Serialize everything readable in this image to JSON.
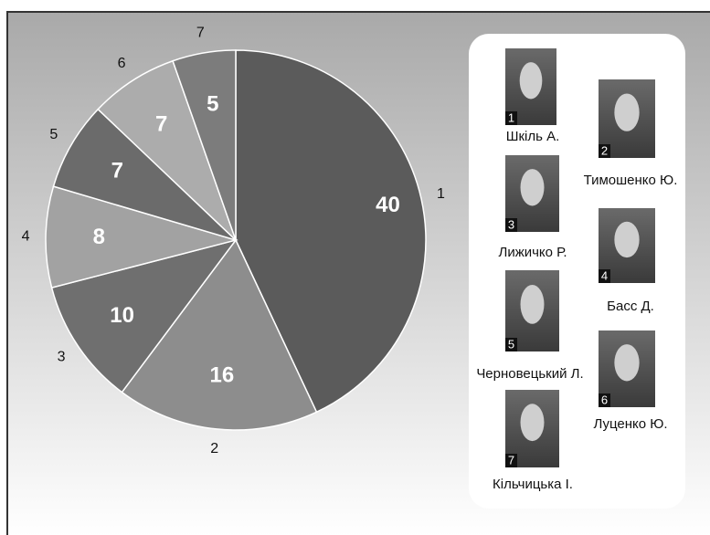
{
  "chart_data": {
    "type": "pie",
    "categories": [
      "1",
      "2",
      "3",
      "4",
      "5",
      "6",
      "7"
    ],
    "values": [
      40,
      16,
      10,
      8,
      7,
      7,
      5
    ],
    "colors": [
      "#5b5b5b",
      "#8d8d8d",
      "#6f6f6f",
      "#a2a2a2",
      "#6b6b6b",
      "#acacac",
      "#7c7c7c"
    ],
    "names": [
      "Шкіль А.",
      "Тимошенко Ю.",
      "Лижичко Р.",
      "Басс Д.",
      "Черновецький Л.",
      "Луценко Ю.",
      "Кільчицька І."
    ]
  }
}
